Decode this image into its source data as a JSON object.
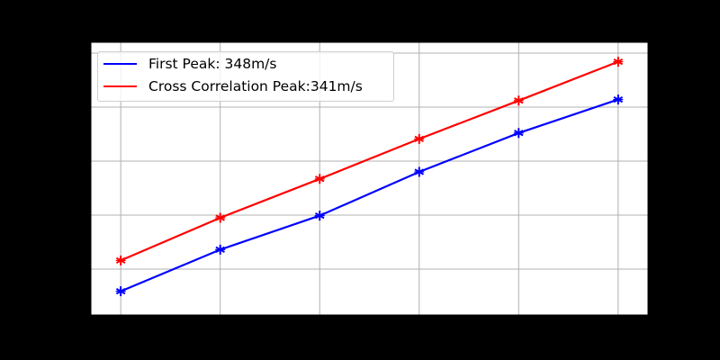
{
  "chart_data": {
    "type": "line",
    "title": "",
    "xlabel": "",
    "ylabel": "",
    "x": [
      1,
      2,
      3,
      4,
      5,
      6
    ],
    "x_tick_labels_visible": false,
    "y_tick_labels_visible": false,
    "y_units_note": "tick labels not visible; values in gridline units (gridlines at 1,2,3,4,5)",
    "ylim": [
      0.15,
      5.2
    ],
    "xlim": [
      0.7,
      6.3
    ],
    "yticks": [
      1,
      2,
      3,
      4,
      5
    ],
    "grid": true,
    "legend_position": "upper left",
    "series": [
      {
        "name": "First Peak: 348m/s",
        "color": "#0000ff",
        "marker": "*",
        "values": [
          0.59,
          1.36,
          1.99,
          2.8,
          3.52,
          4.14
        ]
      },
      {
        "name": "Cross Correlation Peak:341m/s",
        "color": "#ff0000",
        "marker": "*",
        "values": [
          1.16,
          1.95,
          2.67,
          3.41,
          4.12,
          4.84
        ]
      }
    ]
  },
  "legend": {
    "items": [
      {
        "label": "First Peak: 348m/s",
        "color": "#0000ff"
      },
      {
        "label": "Cross Correlation Peak:341m/s",
        "color": "#ff0000"
      }
    ]
  },
  "colors": {
    "figure_background": "#000000",
    "plot_background": "#ffffff",
    "grid": "#b0b0b0",
    "spine": "#000000"
  }
}
